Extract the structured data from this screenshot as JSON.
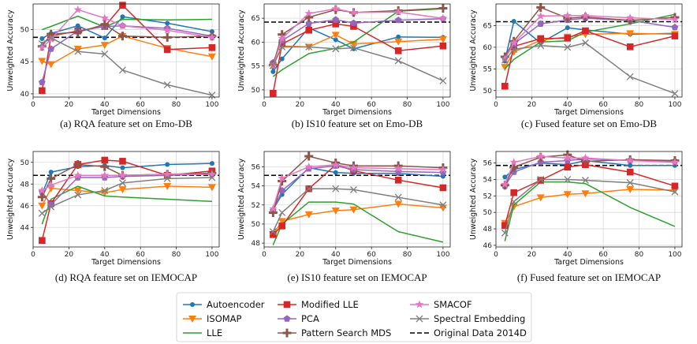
{
  "series_styles": [
    {
      "name": "Autoencoder",
      "color": "#1f77b4",
      "marker": "circle"
    },
    {
      "name": "ISOMAP",
      "color": "#ff7f0e",
      "marker": "tri-down"
    },
    {
      "name": "LLE",
      "color": "#2ca02c",
      "marker": "none"
    },
    {
      "name": "Modified LLE",
      "color": "#d62728",
      "marker": "square"
    },
    {
      "name": "PCA",
      "color": "#9467bd",
      "marker": "pentagon"
    },
    {
      "name": "Pattern Search MDS",
      "color": "#8c564b",
      "marker": "plus"
    },
    {
      "name": "SMACOF",
      "color": "#e377c2",
      "marker": "star"
    },
    {
      "name": "Spectral Embedding",
      "color": "#7f7f7f",
      "marker": "x"
    },
    {
      "name": "Original Data 2014D",
      "color": "#000000",
      "marker": "dashed"
    }
  ],
  "chart_data": [
    {
      "type": "line",
      "caption": "(a) RQA feature set on Emo-DB",
      "xlabel": "Target Dimensions",
      "ylabel": "Unweighted Accuracy",
      "x": [
        5,
        10,
        25,
        40,
        50,
        75,
        100
      ],
      "xlim": [
        0,
        104
      ],
      "ylim": [
        39.5,
        54
      ],
      "xticks": [
        0,
        20,
        40,
        60,
        80,
        100
      ],
      "yticks": [
        40,
        45,
        50
      ],
      "baseline": 48.8,
      "series": [
        {
          "name": "Autoencoder",
          "values": [
            48.6,
            49.4,
            50.6,
            48.7,
            52.0,
            51.0,
            49.7
          ]
        },
        {
          "name": "ISOMAP",
          "values": [
            45.1,
            44.6,
            47.0,
            47.6,
            49.0,
            47.1,
            45.8
          ]
        },
        {
          "name": "LLE",
          "values": [
            50.0,
            50.5,
            52.1,
            50.4,
            51.6,
            51.5,
            51.6
          ]
        },
        {
          "name": "Modified LLE",
          "values": [
            40.5,
            49.0,
            49.8,
            50.5,
            53.8,
            46.9,
            47.2
          ]
        },
        {
          "name": "PCA",
          "values": [
            41.8,
            47.0,
            49.8,
            50.5,
            50.6,
            50.2,
            49.0
          ]
        },
        {
          "name": "Pattern Search MDS",
          "values": [
            47.4,
            49.3,
            49.6,
            50.8,
            49.0,
            48.8,
            49.0
          ]
        },
        {
          "name": "SMACOF",
          "values": [
            47.2,
            48.5,
            53.1,
            51.8,
            50.6,
            49.9,
            48.8
          ]
        },
        {
          "name": "Spectral Embedding",
          "values": [
            47.8,
            48.7,
            46.6,
            46.2,
            43.7,
            41.4,
            39.8
          ]
        }
      ]
    },
    {
      "type": "line",
      "caption": "(b) IS10 feature set on Emo-DB",
      "xlabel": "Target Dimensions",
      "ylabel": "Unweighted Accuracy",
      "x": [
        5,
        10,
        25,
        40,
        50,
        75,
        100
      ],
      "xlim": [
        0,
        104
      ],
      "ylim": [
        48.5,
        68
      ],
      "xticks": [
        0,
        20,
        40,
        60,
        80,
        100
      ],
      "yticks": [
        50,
        55,
        60,
        65
      ],
      "baseline": 64.2,
      "series": [
        {
          "name": "Autoencoder",
          "values": [
            53.8,
            56.5,
            63.0,
            60.5,
            58.6,
            61.1,
            61.0
          ]
        },
        {
          "name": "ISOMAP",
          "values": [
            55.0,
            59.2,
            59.0,
            61.5,
            59.6,
            60.1,
            60.6
          ]
        },
        {
          "name": "LLE",
          "values": [
            52.8,
            54.2,
            57.6,
            58.7,
            60.0,
            66.5,
            67.0
          ]
        },
        {
          "name": "Modified LLE",
          "values": [
            49.3,
            59.6,
            62.5,
            63.8,
            63.3,
            58.2,
            59.2
          ]
        },
        {
          "name": "PCA",
          "values": [
            55.7,
            60.3,
            63.9,
            64.7,
            64.0,
            64.6,
            64.9
          ]
        },
        {
          "name": "Pattern Search MDS",
          "values": [
            55.2,
            61.6,
            65.2,
            66.8,
            66.2,
            66.6,
            67.1
          ]
        },
        {
          "name": "SMACOF",
          "values": [
            55.0,
            60.8,
            66.0,
            67.0,
            66.2,
            66.3,
            65.0
          ]
        },
        {
          "name": "Spectral Embedding",
          "values": [
            55.1,
            59.0,
            59.0,
            58.6,
            58.8,
            56.1,
            51.9
          ]
        }
      ]
    },
    {
      "type": "line",
      "caption": "(c) Fused feature set on Emo-DB",
      "xlabel": "Target Dimensions",
      "ylabel": "Unweighted Accuracy",
      "x": [
        5,
        10,
        25,
        40,
        50,
        75,
        100
      ],
      "xlim": [
        0,
        104
      ],
      "ylim": [
        48.5,
        70
      ],
      "xticks": [
        0,
        20,
        40,
        60,
        80,
        100
      ],
      "yticks": [
        50,
        55,
        60,
        65
      ],
      "baseline": 65.9,
      "series": [
        {
          "name": "Autoencoder",
          "values": [
            56.8,
            66.0,
            61.0,
            64.5,
            64.0,
            63.0,
            63.2
          ]
        },
        {
          "name": "ISOMAP",
          "values": [
            55.4,
            58.9,
            61.6,
            62.4,
            63.0,
            63.2,
            63.0
          ]
        },
        {
          "name": "LLE",
          "values": [
            55.0,
            57.2,
            61.2,
            61.5,
            63.5,
            65.4,
            67.6
          ]
        },
        {
          "name": "Modified LLE",
          "values": [
            51.0,
            60.2,
            62.0,
            62.1,
            63.8,
            60.1,
            62.6
          ]
        },
        {
          "name": "PCA",
          "values": [
            57.5,
            60.8,
            65.4,
            66.3,
            66.7,
            66.2,
            64.6
          ]
        },
        {
          "name": "Pattern Search MDS",
          "values": [
            57.8,
            61.4,
            69.2,
            66.7,
            67.0,
            66.2,
            66.9
          ]
        },
        {
          "name": "SMACOF",
          "values": [
            57.3,
            61.0,
            67.2,
            67.3,
            67.3,
            66.8,
            66.4
          ]
        },
        {
          "name": "Spectral Embedding",
          "values": [
            57.0,
            59.5,
            60.4,
            60.0,
            61.0,
            53.2,
            49.3
          ]
        }
      ]
    },
    {
      "type": "line",
      "caption": "(d) RQA feature set on IEMOCAP",
      "xlabel": "Target Dimensions",
      "ylabel": "Unweighted Accuracy",
      "x": [
        5,
        10,
        25,
        40,
        50,
        75,
        100
      ],
      "xlim": [
        0,
        104
      ],
      "ylim": [
        42.2,
        51
      ],
      "xticks": [
        0,
        20,
        40,
        60,
        80,
        100
      ],
      "yticks": [
        44,
        46,
        48,
        50
      ],
      "baseline": 48.8,
      "series": [
        {
          "name": "Autoencoder",
          "values": [
            47.1,
            49.1,
            49.6,
            49.7,
            49.5,
            49.8,
            49.9
          ]
        },
        {
          "name": "ISOMAP",
          "values": [
            46.0,
            47.6,
            47.4,
            47.2,
            47.5,
            47.8,
            47.7
          ]
        },
        {
          "name": "LLE",
          "values": [
            44.3,
            46.6,
            47.8,
            46.9,
            46.8,
            46.6,
            46.4
          ]
        },
        {
          "name": "Modified LLE",
          "values": [
            42.8,
            46.2,
            49.8,
            50.2,
            50.1,
            48.8,
            49.2
          ]
        },
        {
          "name": "PCA",
          "values": [
            47.3,
            46.1,
            48.6,
            48.6,
            48.7,
            48.8,
            48.9
          ]
        },
        {
          "name": "Pattern Search MDS",
          "values": [
            46.8,
            48.5,
            49.8,
            49.6,
            48.8,
            48.9,
            49.0
          ]
        },
        {
          "name": "SMACOF",
          "values": [
            47.4,
            47.9,
            48.8,
            48.8,
            48.8,
            48.9,
            48.9
          ]
        },
        {
          "name": "Spectral Embedding",
          "values": [
            45.3,
            45.9,
            47.0,
            47.4,
            48.1,
            48.5,
            48.6
          ]
        }
      ]
    },
    {
      "type": "line",
      "caption": "(e) IS10 feature set on IEMOCAP",
      "xlabel": "Target Dimensions",
      "ylabel": "Unweighted Accuracy",
      "x": [
        5,
        10,
        25,
        40,
        50,
        75,
        100
      ],
      "xlim": [
        0,
        104
      ],
      "ylim": [
        47.6,
        57.6
      ],
      "xticks": [
        0,
        20,
        40,
        60,
        80,
        100
      ],
      "yticks": [
        48,
        50,
        52,
        54,
        56
      ],
      "baseline": 55.1,
      "series": [
        {
          "name": "Autoencoder",
          "values": [
            51.5,
            53.1,
            55.9,
            55.4,
            55.3,
            55.3,
            55.0
          ]
        },
        {
          "name": "ISOMAP",
          "values": [
            48.9,
            50.3,
            51.0,
            51.4,
            51.5,
            52.1,
            51.7
          ]
        },
        {
          "name": "LLE",
          "values": [
            47.8,
            50.0,
            52.3,
            52.3,
            52.1,
            49.2,
            48.1
          ]
        },
        {
          "name": "Modified LLE",
          "values": [
            48.9,
            49.8,
            53.7,
            56.2,
            55.6,
            54.6,
            53.8
          ]
        },
        {
          "name": "PCA",
          "values": [
            51.4,
            53.5,
            55.8,
            56.1,
            55.7,
            55.5,
            55.4
          ]
        },
        {
          "name": "Pattern Search MDS",
          "values": [
            51.2,
            54.5,
            57.1,
            56.4,
            56.1,
            56.1,
            55.9
          ]
        },
        {
          "name": "SMACOF",
          "values": [
            51.6,
            54.8,
            56.0,
            56.2,
            55.9,
            55.8,
            55.7
          ]
        },
        {
          "name": "Spectral Embedding",
          "values": [
            49.2,
            51.2,
            53.7,
            53.7,
            53.6,
            52.8,
            52.0
          ]
        }
      ]
    },
    {
      "type": "line",
      "caption": "(f) Fused feature set on IEMOCAP",
      "xlabel": "Target Dimensions",
      "ylabel": "Unweighted Accuracy",
      "x": [
        5,
        10,
        25,
        40,
        50,
        75,
        100
      ],
      "xlim": [
        0,
        104
      ],
      "ylim": [
        45.8,
        57.4
      ],
      "xticks": [
        0,
        20,
        40,
        60,
        80,
        100
      ],
      "yticks": [
        46,
        48,
        50,
        52,
        54,
        56
      ],
      "baseline": 55.7,
      "series": [
        {
          "name": "Autoencoder",
          "values": [
            54.3,
            55.2,
            56.0,
            55.8,
            56.3,
            55.7,
            55.7
          ]
        },
        {
          "name": "ISOMAP",
          "values": [
            48.7,
            50.7,
            51.8,
            52.2,
            52.3,
            52.8,
            52.7
          ]
        },
        {
          "name": "LLE",
          "values": [
            46.5,
            50.9,
            53.7,
            53.7,
            53.5,
            50.6,
            48.3
          ]
        },
        {
          "name": "Modified LLE",
          "values": [
            48.4,
            52.4,
            53.9,
            55.5,
            55.8,
            54.9,
            53.2
          ]
        },
        {
          "name": "PCA",
          "values": [
            53.2,
            54.9,
            56.1,
            56.3,
            56.5,
            56.3,
            56.2
          ]
        },
        {
          "name": "Pattern Search MDS",
          "values": [
            53.3,
            55.5,
            56.7,
            57.0,
            56.2,
            56.4,
            56.3
          ]
        },
        {
          "name": "SMACOF",
          "values": [
            53.4,
            56.1,
            56.8,
            56.6,
            56.6,
            56.3,
            56.1
          ]
        },
        {
          "name": "Spectral Embedding",
          "values": [
            47.5,
            51.3,
            54.0,
            54.0,
            53.9,
            53.6,
            52.5
          ]
        }
      ]
    }
  ]
}
